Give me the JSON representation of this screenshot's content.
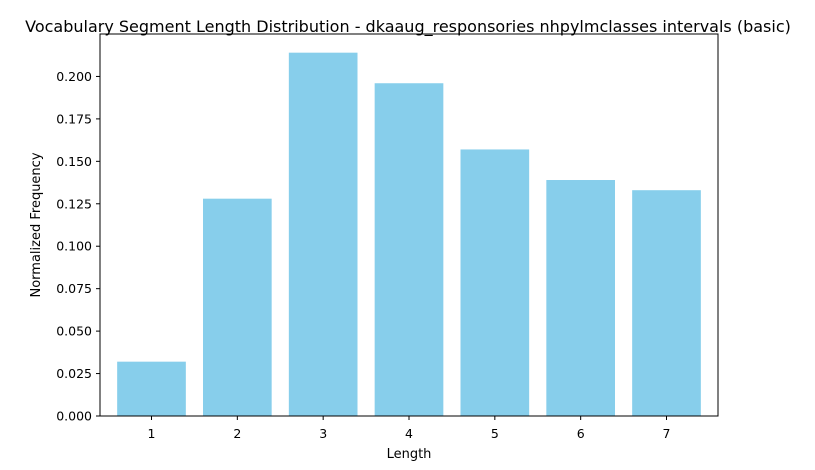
{
  "chart_data": {
    "type": "bar",
    "title": "Vocabulary Segment Length Distribution - dkaaug_responsories nhpylmclasses intervals (basic)",
    "xlabel": "Length",
    "ylabel": "Normalized Frequency",
    "categories": [
      "1",
      "2",
      "3",
      "4",
      "5",
      "6",
      "7"
    ],
    "values": [
      0.032,
      0.128,
      0.214,
      0.196,
      0.157,
      0.139,
      0.133
    ],
    "ylim": [
      0,
      0.225
    ],
    "yticks": [
      "0.000",
      "0.025",
      "0.050",
      "0.075",
      "0.100",
      "0.125",
      "0.150",
      "0.175",
      "0.200"
    ],
    "bar_color": "#87CEEB",
    "grid": false
  }
}
